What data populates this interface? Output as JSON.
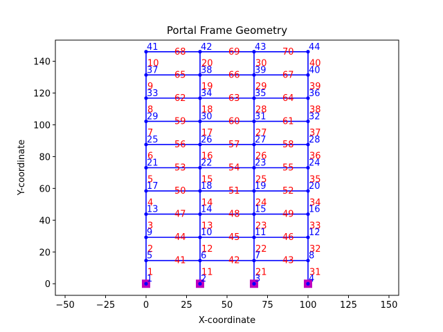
{
  "chart_data": {
    "type": "scatter",
    "title": "Portal Frame Geometry",
    "xlabel": "X-coordinate",
    "ylabel": "Y-coordinate",
    "xlim": [
      -56,
      156
    ],
    "ylim": [
      -7.3,
      153.3
    ],
    "xticks": [
      -50,
      -25,
      0,
      25,
      50,
      75,
      100,
      125,
      150
    ],
    "yticks": [
      0,
      20,
      40,
      60,
      80,
      100,
      120,
      140
    ],
    "grid": false,
    "colors": {
      "member": "#0000ff",
      "node": "#0000ff",
      "support": "#bf00bf",
      "node_label": "#0000ff",
      "element_label": "#ff0000"
    },
    "nodes": [
      {
        "id": "1",
        "x": 0,
        "y": 0
      },
      {
        "id": "2",
        "x": 33.33,
        "y": 0
      },
      {
        "id": "3",
        "x": 66.67,
        "y": 0
      },
      {
        "id": "4",
        "x": 100,
        "y": 0
      },
      {
        "id": "5",
        "x": 0,
        "y": 14.6
      },
      {
        "id": "6",
        "x": 33.33,
        "y": 14.6
      },
      {
        "id": "7",
        "x": 66.67,
        "y": 14.6
      },
      {
        "id": "8",
        "x": 100,
        "y": 14.6
      },
      {
        "id": "9",
        "x": 0,
        "y": 29.2
      },
      {
        "id": "10",
        "x": 33.33,
        "y": 29.2
      },
      {
        "id": "11",
        "x": 66.67,
        "y": 29.2
      },
      {
        "id": "12",
        "x": 100,
        "y": 29.2
      },
      {
        "id": "13",
        "x": 0,
        "y": 43.8
      },
      {
        "id": "14",
        "x": 33.33,
        "y": 43.8
      },
      {
        "id": "15",
        "x": 66.67,
        "y": 43.8
      },
      {
        "id": "16",
        "x": 100,
        "y": 43.8
      },
      {
        "id": "17",
        "x": 0,
        "y": 58.4
      },
      {
        "id": "18",
        "x": 33.33,
        "y": 58.4
      },
      {
        "id": "19",
        "x": 66.67,
        "y": 58.4
      },
      {
        "id": "20",
        "x": 100,
        "y": 58.4
      },
      {
        "id": "21",
        "x": 0,
        "y": 73
      },
      {
        "id": "22",
        "x": 33.33,
        "y": 73
      },
      {
        "id": "23",
        "x": 66.67,
        "y": 73
      },
      {
        "id": "24",
        "x": 100,
        "y": 73
      },
      {
        "id": "25",
        "x": 0,
        "y": 87.6
      },
      {
        "id": "26",
        "x": 33.33,
        "y": 87.6
      },
      {
        "id": "27",
        "x": 66.67,
        "y": 87.6
      },
      {
        "id": "28",
        "x": 100,
        "y": 87.6
      },
      {
        "id": "29",
        "x": 0,
        "y": 102.2
      },
      {
        "id": "30",
        "x": 33.33,
        "y": 102.2
      },
      {
        "id": "31",
        "x": 66.67,
        "y": 102.2
      },
      {
        "id": "32",
        "x": 100,
        "y": 102.2
      },
      {
        "id": "33",
        "x": 0,
        "y": 116.8
      },
      {
        "id": "34",
        "x": 33.33,
        "y": 116.8
      },
      {
        "id": "35",
        "x": 66.67,
        "y": 116.8
      },
      {
        "id": "36",
        "x": 100,
        "y": 116.8
      },
      {
        "id": "37",
        "x": 0,
        "y": 131.4
      },
      {
        "id": "38",
        "x": 33.33,
        "y": 131.4
      },
      {
        "id": "39",
        "x": 66.67,
        "y": 131.4
      },
      {
        "id": "40",
        "x": 100,
        "y": 131.4
      },
      {
        "id": "41",
        "x": 0,
        "y": 146
      },
      {
        "id": "42",
        "x": 33.33,
        "y": 146
      },
      {
        "id": "43",
        "x": 66.67,
        "y": 146
      },
      {
        "id": "44",
        "x": 100,
        "y": 146
      }
    ],
    "elements": [
      {
        "id": "1",
        "i": "1",
        "j": "5"
      },
      {
        "id": "2",
        "i": "5",
        "j": "9"
      },
      {
        "id": "3",
        "i": "9",
        "j": "13"
      },
      {
        "id": "4",
        "i": "13",
        "j": "17"
      },
      {
        "id": "5",
        "i": "17",
        "j": "21"
      },
      {
        "id": "6",
        "i": "21",
        "j": "25"
      },
      {
        "id": "7",
        "i": "25",
        "j": "29"
      },
      {
        "id": "8",
        "i": "29",
        "j": "33"
      },
      {
        "id": "9",
        "i": "33",
        "j": "37"
      },
      {
        "id": "10",
        "i": "37",
        "j": "41"
      },
      {
        "id": "11",
        "i": "2",
        "j": "6"
      },
      {
        "id": "12",
        "i": "6",
        "j": "10"
      },
      {
        "id": "13",
        "i": "10",
        "j": "14"
      },
      {
        "id": "14",
        "i": "14",
        "j": "18"
      },
      {
        "id": "15",
        "i": "18",
        "j": "22"
      },
      {
        "id": "16",
        "i": "22",
        "j": "26"
      },
      {
        "id": "17",
        "i": "26",
        "j": "30"
      },
      {
        "id": "18",
        "i": "30",
        "j": "34"
      },
      {
        "id": "19",
        "i": "34",
        "j": "38"
      },
      {
        "id": "20",
        "i": "38",
        "j": "42"
      },
      {
        "id": "21",
        "i": "3",
        "j": "7"
      },
      {
        "id": "22",
        "i": "7",
        "j": "11"
      },
      {
        "id": "23",
        "i": "11",
        "j": "15"
      },
      {
        "id": "24",
        "i": "15",
        "j": "19"
      },
      {
        "id": "25",
        "i": "19",
        "j": "23"
      },
      {
        "id": "26",
        "i": "23",
        "j": "27"
      },
      {
        "id": "27",
        "i": "27",
        "j": "31"
      },
      {
        "id": "28",
        "i": "31",
        "j": "35"
      },
      {
        "id": "29",
        "i": "35",
        "j": "39"
      },
      {
        "id": "30",
        "i": "39",
        "j": "43"
      },
      {
        "id": "31",
        "i": "4",
        "j": "8"
      },
      {
        "id": "32",
        "i": "8",
        "j": "12"
      },
      {
        "id": "33",
        "i": "12",
        "j": "16"
      },
      {
        "id": "34",
        "i": "16",
        "j": "20"
      },
      {
        "id": "35",
        "i": "20",
        "j": "24"
      },
      {
        "id": "36",
        "i": "24",
        "j": "28"
      },
      {
        "id": "37",
        "i": "28",
        "j": "32"
      },
      {
        "id": "38",
        "i": "32",
        "j": "36"
      },
      {
        "id": "39",
        "i": "36",
        "j": "40"
      },
      {
        "id": "40",
        "i": "40",
        "j": "44"
      },
      {
        "id": "41",
        "i": "5",
        "j": "6"
      },
      {
        "id": "42",
        "i": "6",
        "j": "7"
      },
      {
        "id": "43",
        "i": "7",
        "j": "8"
      },
      {
        "id": "44",
        "i": "9",
        "j": "10"
      },
      {
        "id": "45",
        "i": "10",
        "j": "11"
      },
      {
        "id": "46",
        "i": "11",
        "j": "12"
      },
      {
        "id": "47",
        "i": "13",
        "j": "14"
      },
      {
        "id": "48",
        "i": "14",
        "j": "15"
      },
      {
        "id": "49",
        "i": "15",
        "j": "16"
      },
      {
        "id": "50",
        "i": "17",
        "j": "18"
      },
      {
        "id": "51",
        "i": "18",
        "j": "19"
      },
      {
        "id": "52",
        "i": "19",
        "j": "20"
      },
      {
        "id": "53",
        "i": "21",
        "j": "22"
      },
      {
        "id": "54",
        "i": "22",
        "j": "23"
      },
      {
        "id": "55",
        "i": "23",
        "j": "24"
      },
      {
        "id": "56",
        "i": "25",
        "j": "26"
      },
      {
        "id": "57",
        "i": "26",
        "j": "27"
      },
      {
        "id": "58",
        "i": "27",
        "j": "28"
      },
      {
        "id": "59",
        "i": "29",
        "j": "30"
      },
      {
        "id": "60",
        "i": "30",
        "j": "31"
      },
      {
        "id": "61",
        "i": "31",
        "j": "32"
      },
      {
        "id": "62",
        "i": "33",
        "j": "34"
      },
      {
        "id": "63",
        "i": "34",
        "j": "35"
      },
      {
        "id": "64",
        "i": "35",
        "j": "36"
      },
      {
        "id": "65",
        "i": "37",
        "j": "38"
      },
      {
        "id": "66",
        "i": "38",
        "j": "39"
      },
      {
        "id": "67",
        "i": "39",
        "j": "40"
      },
      {
        "id": "68",
        "i": "41",
        "j": "42"
      },
      {
        "id": "69",
        "i": "42",
        "j": "43"
      },
      {
        "id": "70",
        "i": "43",
        "j": "44"
      }
    ],
    "supports": [
      "1",
      "2",
      "3",
      "4"
    ]
  }
}
